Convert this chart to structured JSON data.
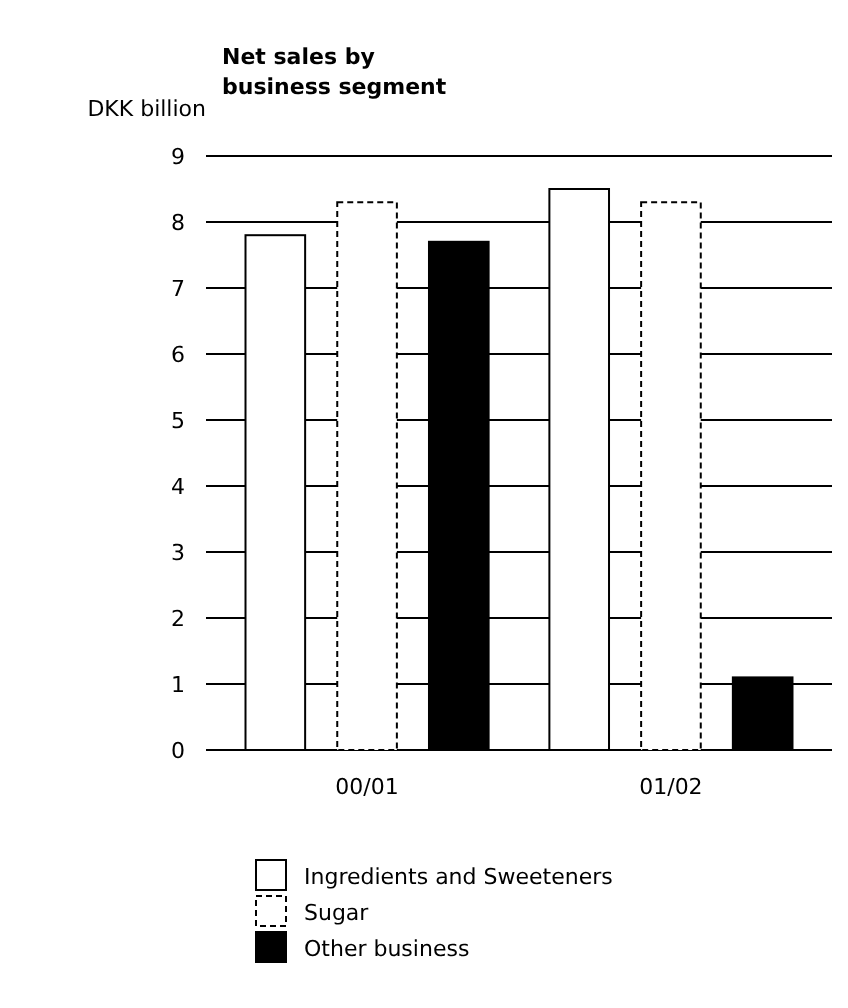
{
  "chart_data": {
    "type": "bar",
    "title": "Net sales by\nbusiness segment",
    "ylabel": "DKK billion",
    "categories": [
      "00/01",
      "01/02"
    ],
    "series": [
      {
        "name": "Ingredients and Sweeteners",
        "color": "#ffffff",
        "values": [
          7.8,
          8.5
        ]
      },
      {
        "name": "Sugar",
        "color": "#ffffff",
        "values": [
          8.3,
          8.3
        ],
        "line_style": "dashed"
      },
      {
        "name": "Other business",
        "color": "#000000",
        "values": [
          7.7,
          1.1
        ]
      }
    ],
    "ylim": [
      0,
      9
    ],
    "yticks": [
      0,
      1,
      2,
      3,
      4,
      5,
      6,
      7,
      8,
      9
    ],
    "grid": "y",
    "legend": "bottom"
  }
}
